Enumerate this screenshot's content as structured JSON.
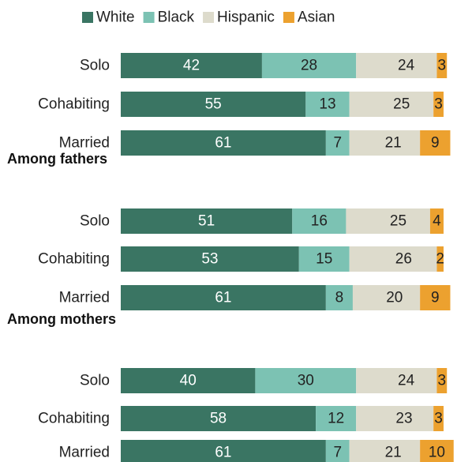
{
  "chart_data": {
    "type": "bar",
    "orientation": "horizontal",
    "stacked": true,
    "xlim": [
      0,
      100
    ],
    "grid": false,
    "legend_position": "top",
    "legend": [
      {
        "name": "White",
        "color": "#3a7563"
      },
      {
        "name": "Black",
        "color": "#7cc2b3"
      },
      {
        "name": "Hispanic",
        "color": "#dddbcc"
      },
      {
        "name": "Asian",
        "color": "#eca12f"
      }
    ],
    "groups": [
      {
        "title": "",
        "categories": [
          "Solo",
          "Cohabiting",
          "Married"
        ],
        "series": [
          {
            "name": "White",
            "values": [
              42,
              55,
              61
            ]
          },
          {
            "name": "Black",
            "values": [
              28,
              13,
              7
            ]
          },
          {
            "name": "Hispanic",
            "values": [
              24,
              25,
              21
            ]
          },
          {
            "name": "Asian",
            "values": [
              3,
              3,
              9
            ]
          }
        ]
      },
      {
        "title": "Among fathers",
        "categories": [
          "Solo",
          "Cohabiting",
          "Married"
        ],
        "series": [
          {
            "name": "White",
            "values": [
              51,
              53,
              61
            ]
          },
          {
            "name": "Black",
            "values": [
              16,
              15,
              8
            ]
          },
          {
            "name": "Hispanic",
            "values": [
              25,
              26,
              20
            ]
          },
          {
            "name": "Asian",
            "values": [
              4,
              2,
              9
            ]
          }
        ]
      },
      {
        "title": "Among mothers",
        "categories": [
          "Solo",
          "Cohabiting",
          "Married"
        ],
        "series": [
          {
            "name": "White",
            "values": [
              40,
              58,
              61
            ]
          },
          {
            "name": "Black",
            "values": [
              30,
              12,
              7
            ]
          },
          {
            "name": "Hispanic",
            "values": [
              24,
              23,
              21
            ]
          },
          {
            "name": "Asian",
            "values": [
              3,
              3,
              10
            ]
          }
        ]
      }
    ]
  }
}
